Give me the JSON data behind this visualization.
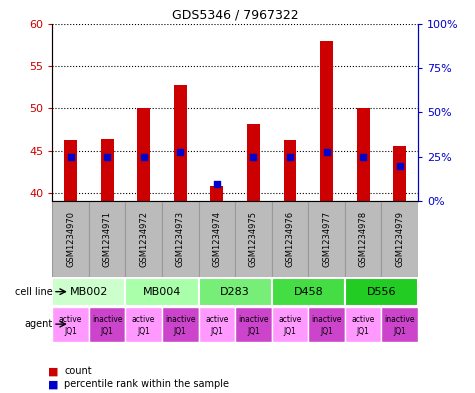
{
  "title": "GDS5346 / 7967322",
  "samples": [
    "GSM1234970",
    "GSM1234971",
    "GSM1234972",
    "GSM1234973",
    "GSM1234974",
    "GSM1234975",
    "GSM1234976",
    "GSM1234977",
    "GSM1234978",
    "GSM1234979"
  ],
  "counts": [
    46.3,
    46.4,
    50.0,
    52.8,
    40.8,
    48.2,
    46.3,
    58.0,
    50.0,
    45.5
  ],
  "percentiles": [
    25,
    25,
    25,
    28,
    10,
    25,
    25,
    28,
    25,
    20
  ],
  "ylim_left": [
    39,
    60
  ],
  "ylim_right": [
    0,
    100
  ],
  "yticks_left": [
    40,
    45,
    50,
    55,
    60
  ],
  "ytick_labels_right": [
    "0%",
    "25%",
    "50%",
    "75%",
    "100%"
  ],
  "yticks_right": [
    0,
    25,
    50,
    75,
    100
  ],
  "cell_lines": [
    {
      "label": "MB002",
      "cols": [
        0,
        1
      ],
      "color": "#ccffcc"
    },
    {
      "label": "MB004",
      "cols": [
        2,
        3
      ],
      "color": "#aaffaa"
    },
    {
      "label": "D283",
      "cols": [
        4,
        5
      ],
      "color": "#77ee77"
    },
    {
      "label": "D458",
      "cols": [
        6,
        7
      ],
      "color": "#44dd44"
    },
    {
      "label": "D556",
      "cols": [
        8,
        9
      ],
      "color": "#22cc22"
    }
  ],
  "agent_labels": [
    "active",
    "inactive",
    "active",
    "inactive",
    "active",
    "inactive",
    "active",
    "inactive",
    "active",
    "inactive"
  ],
  "agent_sub": "JQ1",
  "agent_active_color": "#ff99ff",
  "agent_inactive_color": "#cc44cc",
  "bar_color": "#cc0000",
  "dot_color": "#0000cc",
  "bar_bottom": 39.0,
  "bg_color": "#ffffff",
  "sample_bg_color": "#bbbbbb",
  "sample_border_color": "#999999",
  "left_label_color": "#cc0000",
  "right_label_color": "#0000cc"
}
